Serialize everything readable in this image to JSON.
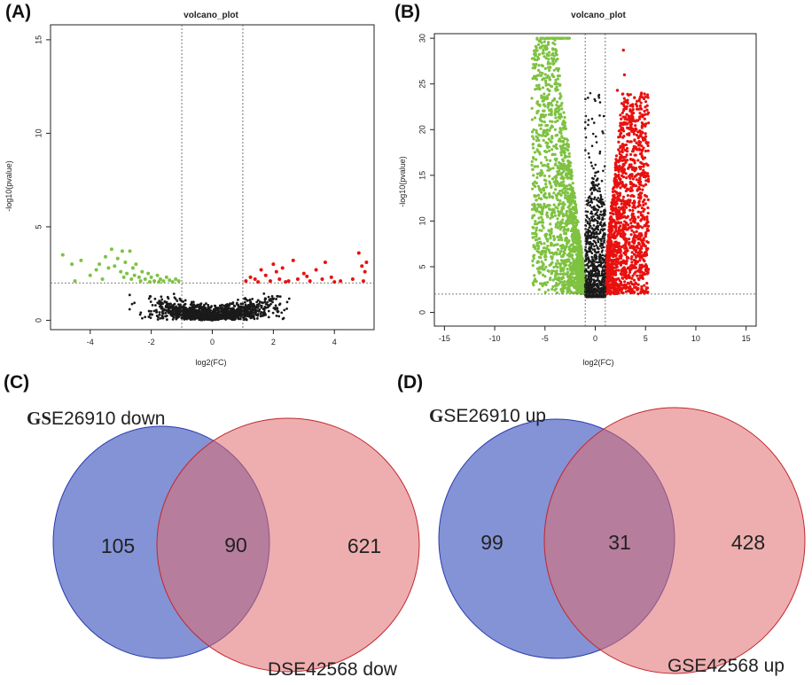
{
  "panels": {
    "A": "(A)",
    "B": "(B)",
    "C": "(C)",
    "D": "(D)"
  },
  "colors": {
    "up": "#e8110f",
    "down": "#7ec241",
    "ns": "#1a1a1a",
    "ns_light": "#8a8a8a",
    "venn_left": "#6f80cf",
    "venn_left_stroke": "#2b3bb0",
    "venn_right": "#e06b6e",
    "venn_right_stroke": "#c2262e",
    "venn_overlap": "#a8526e"
  },
  "chart_data": [
    {
      "type": "scatter",
      "title": "volcano_plot",
      "xlabel": "log2(FC)",
      "ylabel": "-log10(pvalue)",
      "xlim": [
        -5.3,
        5.3
      ],
      "ylim": [
        -0.5,
        15.8
      ],
      "xticks": [
        -4,
        -2,
        0,
        2,
        4
      ],
      "yticks": [
        0,
        5,
        10,
        15
      ],
      "vlines": [
        -1,
        1
      ],
      "hline": 2,
      "grid": false,
      "series": [
        {
          "group": "down",
          "points": [
            [
              -4.9,
              3.5
            ],
            [
              -4.6,
              3.0
            ],
            [
              -4.3,
              3.2
            ],
            [
              -4.0,
              2.4
            ],
            [
              -3.8,
              2.7
            ],
            [
              -3.7,
              3.0
            ],
            [
              -3.5,
              3.4
            ],
            [
              -3.4,
              2.8
            ],
            [
              -3.3,
              3.8
            ],
            [
              -3.2,
              2.9
            ],
            [
              -3.1,
              3.3
            ],
            [
              -3.0,
              2.6
            ],
            [
              -2.95,
              3.7
            ],
            [
              -2.9,
              2.3
            ],
            [
              -2.85,
              3.1
            ],
            [
              -2.8,
              2.5
            ],
            [
              -2.7,
              3.7
            ],
            [
              -2.65,
              2.2
            ],
            [
              -2.6,
              2.8
            ],
            [
              -2.55,
              2.4
            ],
            [
              -2.5,
              3.0
            ],
            [
              -2.4,
              2.3
            ],
            [
              -2.3,
              2.6
            ],
            [
              -2.2,
              2.2
            ],
            [
              -2.1,
              2.5
            ],
            [
              -2.0,
              2.3
            ],
            [
              -1.9,
              2.1
            ],
            [
              -1.8,
              2.4
            ],
            [
              -1.7,
              2.2
            ],
            [
              -1.6,
              2.1
            ],
            [
              -1.5,
              2.3
            ],
            [
              -1.4,
              2.15
            ],
            [
              -1.3,
              2.05
            ],
            [
              -1.2,
              2.2
            ],
            [
              -1.1,
              2.1
            ],
            [
              -2.35,
              2.1
            ],
            [
              -1.75,
              2.05
            ],
            [
              -3.6,
              2.2
            ],
            [
              -4.5,
              2.1
            ],
            [
              -2.05,
              2.05
            ]
          ]
        },
        {
          "group": "up",
          "points": [
            [
              1.1,
              2.1
            ],
            [
              1.25,
              2.3
            ],
            [
              1.4,
              2.2
            ],
            [
              1.6,
              2.7
            ],
            [
              1.75,
              2.4
            ],
            [
              1.9,
              2.1
            ],
            [
              2.0,
              3.0
            ],
            [
              2.1,
              2.6
            ],
            [
              2.2,
              2.2
            ],
            [
              2.3,
              2.8
            ],
            [
              2.5,
              2.1
            ],
            [
              2.65,
              3.2
            ],
            [
              2.8,
              2.2
            ],
            [
              3.0,
              2.5
            ],
            [
              3.2,
              2.1
            ],
            [
              3.4,
              2.7
            ],
            [
              3.6,
              2.2
            ],
            [
              3.7,
              3.1
            ],
            [
              3.9,
              2.3
            ],
            [
              4.2,
              2.1
            ],
            [
              4.6,
              2.2
            ],
            [
              4.8,
              3.6
            ],
            [
              4.9,
              2.9
            ],
            [
              5.0,
              2.6
            ],
            [
              5.05,
              3.1
            ],
            [
              1.5,
              2.05
            ],
            [
              2.4,
              2.05
            ],
            [
              3.1,
              2.35
            ],
            [
              4.0,
              2.05
            ],
            [
              4.95,
              2.1
            ]
          ]
        }
      ]
    },
    {
      "type": "scatter",
      "title": "volcano_plot",
      "xlabel": "log2(FC)",
      "ylabel": "-log10(pvalue)",
      "xlim": [
        -16,
        16
      ],
      "ylim": [
        -1.5,
        30.5
      ],
      "xticks": [
        -15,
        -10,
        -5,
        0,
        5,
        10,
        15
      ],
      "yticks": [
        0,
        5,
        10,
        15,
        20,
        25,
        30
      ],
      "vlines": [
        -1,
        1
      ],
      "hline": 2,
      "grid": false,
      "cap": 30,
      "series": [
        {
          "group": "down",
          "x_range": [
            -6.3,
            -1.0
          ],
          "y_range": [
            2,
            30
          ]
        },
        {
          "group": "up",
          "x_range": [
            1.0,
            5.3
          ],
          "y_range": [
            2,
            29
          ]
        },
        {
          "group": "ns",
          "x_range": [
            -1.0,
            1.0
          ],
          "y_range": [
            1.7,
            24
          ]
        }
      ]
    },
    {
      "type": "venn",
      "sets": [
        {
          "label": "GSE26910 down",
          "only": 105
        },
        {
          "label": "DSE42568 dow",
          "only": 621
        }
      ],
      "overlap": 90
    },
    {
      "type": "venn",
      "sets": [
        {
          "label": "GSE26910 up",
          "only": 99
        },
        {
          "label": "GSE42568 up",
          "only": 428
        }
      ],
      "overlap": 31
    }
  ],
  "venn_labels": {
    "c_left_lead": "GS",
    "c_left_rest": "E26910 down",
    "c_right": "DSE42568 dow",
    "d_left_lead": "G",
    "d_left_rest": "SE26910 up",
    "d_right": "GSE42568 up"
  }
}
